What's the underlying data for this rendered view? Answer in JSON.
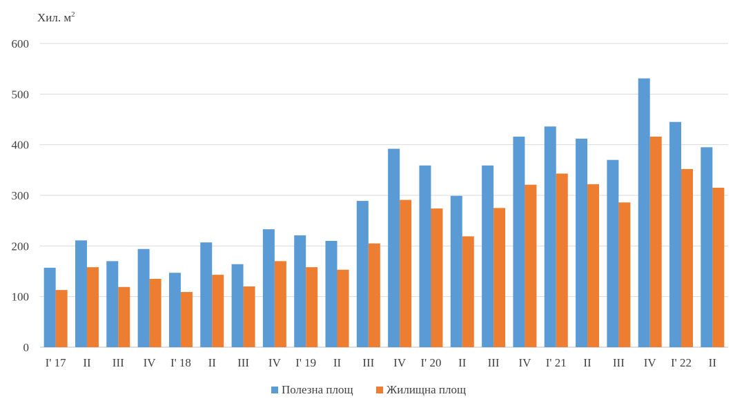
{
  "chart_data": {
    "type": "bar",
    "ylabel": "Хил. м",
    "ylabel_superscript": "2",
    "ylim": [
      0,
      600
    ],
    "yticks": [
      "0",
      "100",
      "200",
      "300",
      "400",
      "500",
      "600"
    ],
    "grid": true,
    "legend_placement": "bottom",
    "categories": [
      "I' 17",
      "II",
      "III",
      "IV",
      "I' 18",
      "II",
      "III",
      "IV",
      "I' 19",
      "II",
      "III",
      "IV",
      "I' 20",
      "II",
      "III",
      "IV",
      "I' 21",
      "II",
      "III",
      "IV",
      "I' 22",
      "II"
    ],
    "series": [
      {
        "name": "Полезна площ",
        "color": "#5B9BD5",
        "values": [
          157,
          211,
          170,
          194,
          147,
          207,
          164,
          233,
          221,
          210,
          289,
          392,
          359,
          299,
          359,
          416,
          436,
          412,
          370,
          531,
          445,
          395
        ]
      },
      {
        "name": "Жилищна площ",
        "color": "#ED7D31",
        "values": [
          113,
          158,
          119,
          135,
          109,
          143,
          120,
          170,
          158,
          153,
          205,
          291,
          274,
          219,
          275,
          321,
          343,
          322,
          286,
          416,
          352,
          315
        ]
      }
    ]
  }
}
